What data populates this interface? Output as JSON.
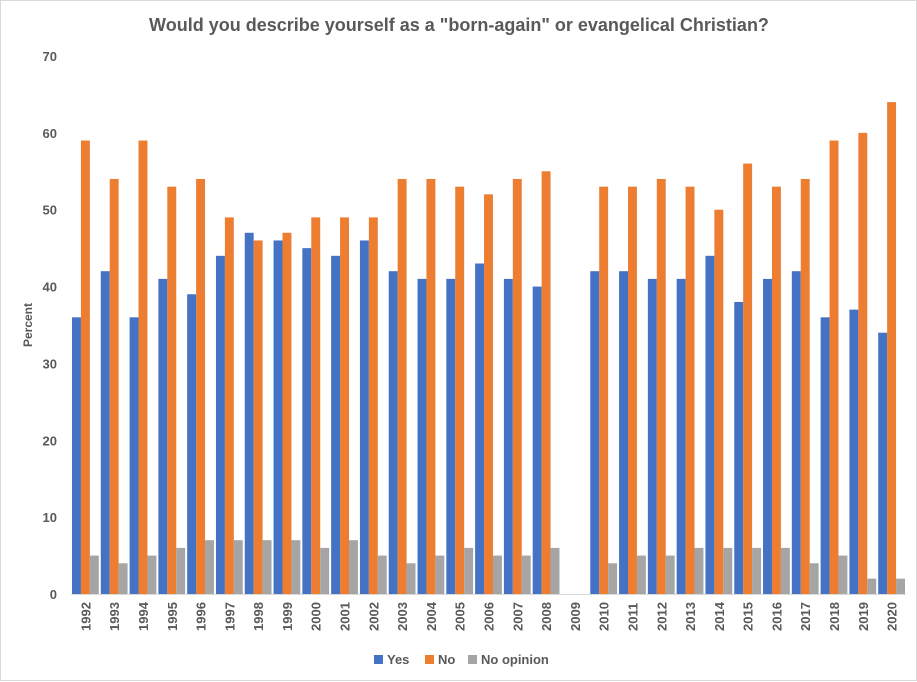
{
  "chart_data": {
    "type": "bar",
    "title": "Would you describe yourself as a \"born-again\"  or evangelical Christian?",
    "xlabel": "",
    "ylabel": "Percent",
    "ylim": [
      0,
      70
    ],
    "yticks": [
      0,
      10,
      20,
      30,
      40,
      50,
      60,
      70
    ],
    "grid": false,
    "legend": "bottom",
    "categories": [
      "1992",
      "1993",
      "1994",
      "1995",
      "1996",
      "1997",
      "1998",
      "1999",
      "2000",
      "2001",
      "2002",
      "2003",
      "2004",
      "2005",
      "2006",
      "2007",
      "2008",
      "2009",
      "2010",
      "2011",
      "2012",
      "2013",
      "2014",
      "2015",
      "2016",
      "2017",
      "2018",
      "2019",
      "2020"
    ],
    "series": [
      {
        "name": "Yes",
        "color": "#4472c4",
        "values": [
          36,
          42,
          36,
          41,
          39,
          44,
          47,
          46,
          45,
          44,
          46,
          42,
          41,
          41,
          43,
          41,
          40,
          null,
          42,
          42,
          41,
          41,
          44,
          38,
          41,
          42,
          36,
          37,
          34
        ]
      },
      {
        "name": "No",
        "color": "#ed7d31",
        "values": [
          59,
          54,
          59,
          53,
          54,
          49,
          46,
          47,
          49,
          49,
          49,
          54,
          54,
          53,
          52,
          54,
          55,
          null,
          53,
          53,
          54,
          53,
          50,
          56,
          53,
          54,
          59,
          60,
          64
        ]
      },
      {
        "name": "No opinion",
        "color": "#a5a5a5",
        "values": [
          5,
          4,
          5,
          6,
          7,
          7,
          7,
          7,
          6,
          7,
          5,
          4,
          5,
          6,
          5,
          5,
          6,
          null,
          4,
          5,
          5,
          6,
          6,
          6,
          6,
          4,
          5,
          2,
          2
        ]
      }
    ]
  }
}
